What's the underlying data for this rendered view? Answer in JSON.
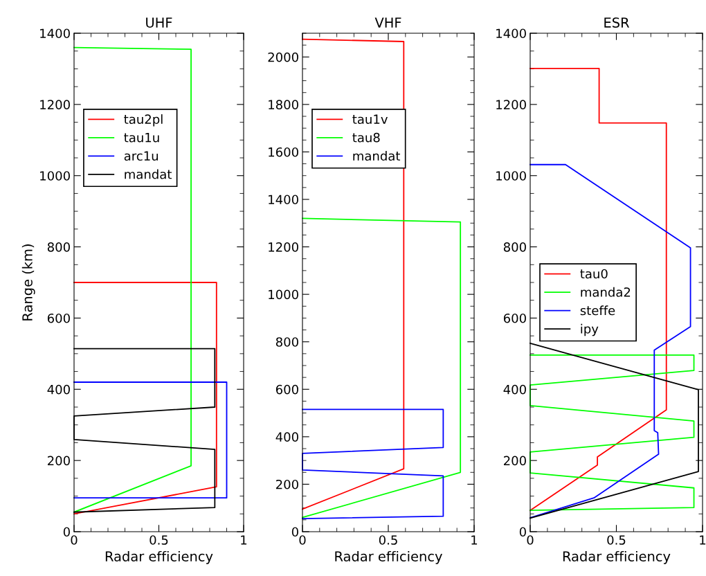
{
  "chart_data": [
    {
      "type": "line",
      "title": "UHF",
      "xlabel": "Radar efficiency",
      "ylabel": "Range (km)",
      "xlim": [
        0,
        1
      ],
      "xticks": [
        0,
        0.5,
        1
      ],
      "ylim": [
        0,
        1400
      ],
      "yticks": [
        0,
        200,
        400,
        600,
        800,
        1000,
        1200,
        1400
      ],
      "legend": "upper left",
      "grid": false,
      "series": [
        {
          "name": "tau2pl",
          "color": "#ff0000",
          "x": [
            0,
            0.84,
            0.84,
            0
          ],
          "values": [
            50,
            126,
            700,
            700
          ]
        },
        {
          "name": "tau1u",
          "color": "#00ff00",
          "x": [
            0,
            0.69,
            0.69,
            0
          ],
          "values": [
            55,
            185,
            1355,
            1360
          ]
        },
        {
          "name": "arc1u",
          "color": "#0000ff",
          "x": [
            0,
            0.9,
            0.9,
            0
          ],
          "values": [
            95,
            95,
            420,
            420
          ]
        },
        {
          "name": "mandat",
          "color": "#000000",
          "x": [
            0,
            0.83,
            0.83,
            0,
            0,
            0.83,
            0.83,
            0
          ],
          "values": [
            55,
            68,
            231,
            259,
            325,
            350,
            514,
            514
          ]
        }
      ]
    },
    {
      "type": "line",
      "title": "VHF",
      "xlabel": "Radar efficiency",
      "xlim": [
        0,
        1
      ],
      "xticks": [
        0,
        0.5,
        1
      ],
      "ylim": [
        0,
        2100
      ],
      "yticks": [
        0,
        200,
        400,
        600,
        800,
        1000,
        1200,
        1400,
        1600,
        1800,
        2000
      ],
      "legend": "upper left",
      "grid": false,
      "series": [
        {
          "name": "tau1v",
          "color": "#ff0000",
          "x": [
            0,
            0.59,
            0.59,
            0
          ],
          "values": [
            95,
            265,
            2065,
            2075
          ]
        },
        {
          "name": "tau8",
          "color": "#00ff00",
          "x": [
            0,
            0.92,
            0.92,
            0
          ],
          "values": [
            60,
            250,
            1305,
            1320
          ]
        },
        {
          "name": "mandat",
          "color": "#0000ff",
          "x": [
            0,
            0.82,
            0.82,
            0,
            0,
            0.82,
            0.82,
            0
          ],
          "values": [
            55,
            65,
            235,
            260,
            330,
            355,
            515,
            515
          ]
        }
      ]
    },
    {
      "type": "line",
      "title": "ESR",
      "xlabel": "Radar efficiency",
      "xlim": [
        0,
        1
      ],
      "xticks": [
        0,
        0.5,
        1
      ],
      "ylim": [
        0,
        1400
      ],
      "yticks": [
        0,
        200,
        400,
        600,
        800,
        1000,
        1200,
        1400
      ],
      "legend": "center left",
      "grid": false,
      "series": [
        {
          "name": "tau0",
          "color": "#ff0000",
          "x": [
            0,
            0.39,
            0.39,
            0.79,
            0.79,
            0.4,
            0.4,
            0
          ],
          "values": [
            60,
            187,
            210,
            342,
            1148,
            1148,
            1301,
            1301
          ]
        },
        {
          "name": "manda2",
          "color": "#00ff00",
          "x": [
            0,
            0.95,
            0.95,
            0,
            0,
            0.95,
            0.95,
            0,
            0,
            0.95,
            0.95,
            0
          ],
          "values": [
            60,
            68,
            123,
            165,
            224,
            265,
            311,
            354,
            412,
            453,
            496,
            496
          ]
        },
        {
          "name": "steffe",
          "color": "#0000ff",
          "x": [
            0,
            0.37,
            0.745,
            0.74,
            0.72,
            0.72,
            0.93,
            0.93,
            0.205,
            0
          ],
          "values": [
            39,
            95,
            218,
            278,
            284,
            510,
            576,
            797,
            1031,
            1031
          ]
        },
        {
          "name": "ipy",
          "color": "#000000",
          "x": [
            0,
            0.976,
            0.976,
            0
          ],
          "values": [
            38,
            169,
            399,
            529
          ]
        }
      ]
    }
  ]
}
